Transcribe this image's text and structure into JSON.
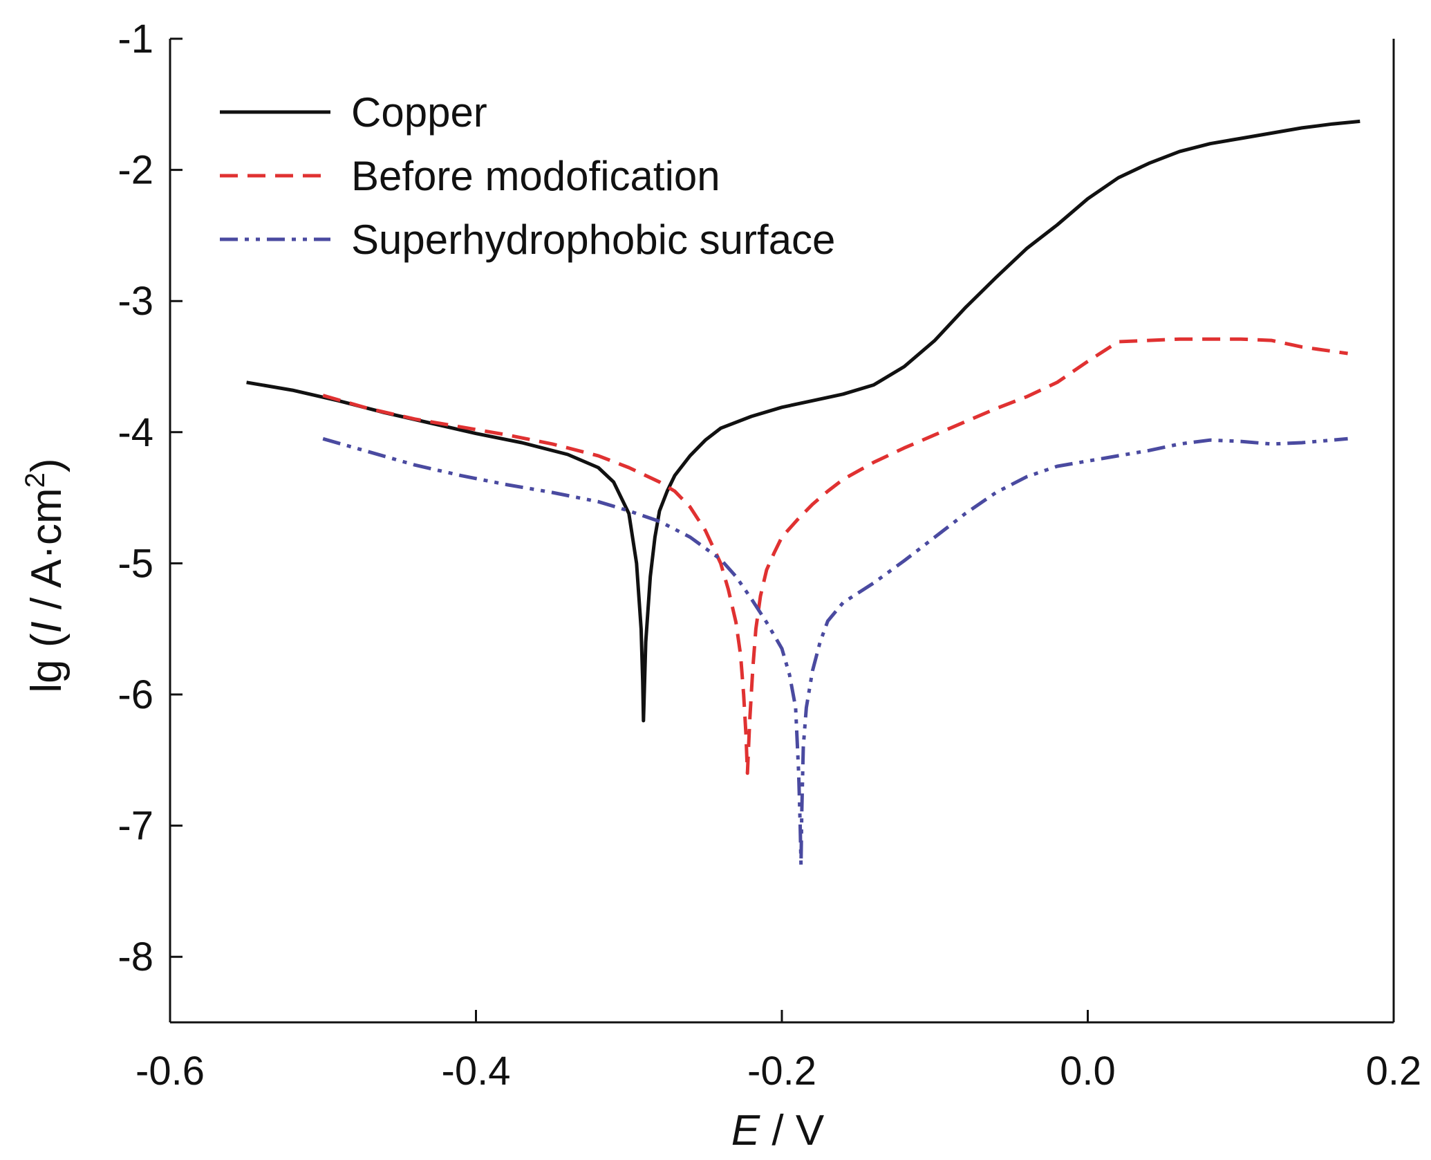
{
  "chart_data": {
    "type": "line",
    "xlabel": {
      "italic": "E",
      "rest": " / V"
    },
    "ylabel": {
      "pre": "lg (",
      "italic": "I",
      "post": " / A·cm",
      "sup": "2",
      "end": ")"
    },
    "xlim": [
      -0.6,
      0.2
    ],
    "ylim": [
      -8.5,
      -1
    ],
    "x_ticks": [
      -0.6,
      -0.4,
      -0.2,
      0.0,
      0.2
    ],
    "x_tick_labels": [
      "-0.6",
      "-0.4",
      "-0.2",
      "0.0",
      "0.2"
    ],
    "y_ticks": [
      -8,
      -7,
      -6,
      -5,
      -4,
      -3,
      -2,
      -1
    ],
    "y_tick_labels": [
      "-8",
      "-7",
      "-6",
      "-5",
      "-4",
      "-3",
      "-2",
      "-1"
    ],
    "grid": false,
    "legend_position": "top-left",
    "series": [
      {
        "name": "Copper",
        "color": "#111111",
        "style": "solid",
        "points": [
          [
            -0.55,
            -3.62
          ],
          [
            -0.52,
            -3.68
          ],
          [
            -0.49,
            -3.76
          ],
          [
            -0.46,
            -3.85
          ],
          [
            -0.43,
            -3.93
          ],
          [
            -0.4,
            -4.01
          ],
          [
            -0.37,
            -4.08
          ],
          [
            -0.34,
            -4.17
          ],
          [
            -0.32,
            -4.27
          ],
          [
            -0.31,
            -4.38
          ],
          [
            -0.3,
            -4.62
          ],
          [
            -0.295,
            -5.0
          ],
          [
            -0.292,
            -5.5
          ],
          [
            -0.291,
            -5.9
          ],
          [
            -0.2905,
            -6.2
          ],
          [
            -0.29,
            -6.0
          ],
          [
            -0.289,
            -5.6
          ],
          [
            -0.286,
            -5.1
          ],
          [
            -0.283,
            -4.8
          ],
          [
            -0.28,
            -4.6
          ],
          [
            -0.275,
            -4.45
          ],
          [
            -0.27,
            -4.33
          ],
          [
            -0.26,
            -4.18
          ],
          [
            -0.25,
            -4.06
          ],
          [
            -0.24,
            -3.97
          ],
          [
            -0.22,
            -3.88
          ],
          [
            -0.2,
            -3.81
          ],
          [
            -0.18,
            -3.76
          ],
          [
            -0.16,
            -3.71
          ],
          [
            -0.14,
            -3.64
          ],
          [
            -0.12,
            -3.5
          ],
          [
            -0.1,
            -3.3
          ],
          [
            -0.08,
            -3.05
          ],
          [
            -0.06,
            -2.82
          ],
          [
            -0.04,
            -2.6
          ],
          [
            -0.02,
            -2.42
          ],
          [
            0.0,
            -2.22
          ],
          [
            0.02,
            -2.06
          ],
          [
            0.04,
            -1.95
          ],
          [
            0.06,
            -1.86
          ],
          [
            0.08,
            -1.8
          ],
          [
            0.1,
            -1.76
          ],
          [
            0.12,
            -1.72
          ],
          [
            0.14,
            -1.68
          ],
          [
            0.16,
            -1.65
          ],
          [
            0.178,
            -1.63
          ]
        ]
      },
      {
        "name": "Before modofication",
        "color": "#e03131",
        "style": "dashed",
        "points": [
          [
            -0.5,
            -3.72
          ],
          [
            -0.47,
            -3.82
          ],
          [
            -0.44,
            -3.9
          ],
          [
            -0.41,
            -3.96
          ],
          [
            -0.38,
            -4.02
          ],
          [
            -0.35,
            -4.09
          ],
          [
            -0.32,
            -4.18
          ],
          [
            -0.3,
            -4.27
          ],
          [
            -0.28,
            -4.38
          ],
          [
            -0.27,
            -4.45
          ],
          [
            -0.26,
            -4.57
          ],
          [
            -0.25,
            -4.75
          ],
          [
            -0.24,
            -5.0
          ],
          [
            -0.235,
            -5.2
          ],
          [
            -0.23,
            -5.45
          ],
          [
            -0.227,
            -5.7
          ],
          [
            -0.225,
            -6.0
          ],
          [
            -0.2235,
            -6.3
          ],
          [
            -0.2225,
            -6.6
          ],
          [
            -0.221,
            -6.2
          ],
          [
            -0.219,
            -5.8
          ],
          [
            -0.217,
            -5.5
          ],
          [
            -0.214,
            -5.25
          ],
          [
            -0.21,
            -5.05
          ],
          [
            -0.205,
            -4.92
          ],
          [
            -0.2,
            -4.8
          ],
          [
            -0.19,
            -4.67
          ],
          [
            -0.18,
            -4.55
          ],
          [
            -0.17,
            -4.45
          ],
          [
            -0.16,
            -4.36
          ],
          [
            -0.14,
            -4.23
          ],
          [
            -0.12,
            -4.12
          ],
          [
            -0.1,
            -4.02
          ],
          [
            -0.08,
            -3.92
          ],
          [
            -0.06,
            -3.82
          ],
          [
            -0.04,
            -3.73
          ],
          [
            -0.02,
            -3.62
          ],
          [
            0.0,
            -3.46
          ],
          [
            0.02,
            -3.31
          ],
          [
            0.04,
            -3.3
          ],
          [
            0.06,
            -3.29
          ],
          [
            0.08,
            -3.29
          ],
          [
            0.1,
            -3.29
          ],
          [
            0.12,
            -3.3
          ],
          [
            0.14,
            -3.35
          ],
          [
            0.17,
            -3.4
          ]
        ]
      },
      {
        "name": "Superhydrophobic surface",
        "color": "#4a4aa0",
        "style": "dashdotdot",
        "points": [
          [
            -0.5,
            -4.05
          ],
          [
            -0.47,
            -4.15
          ],
          [
            -0.44,
            -4.25
          ],
          [
            -0.41,
            -4.33
          ],
          [
            -0.38,
            -4.4
          ],
          [
            -0.35,
            -4.46
          ],
          [
            -0.32,
            -4.53
          ],
          [
            -0.3,
            -4.6
          ],
          [
            -0.28,
            -4.68
          ],
          [
            -0.26,
            -4.8
          ],
          [
            -0.24,
            -4.97
          ],
          [
            -0.23,
            -5.1
          ],
          [
            -0.22,
            -5.27
          ],
          [
            -0.21,
            -5.45
          ],
          [
            -0.2,
            -5.65
          ],
          [
            -0.195,
            -5.85
          ],
          [
            -0.191,
            -6.1
          ],
          [
            -0.189,
            -6.6
          ],
          [
            -0.188,
            -7.0
          ],
          [
            -0.1875,
            -7.3
          ],
          [
            -0.187,
            -6.9
          ],
          [
            -0.186,
            -6.4
          ],
          [
            -0.184,
            -6.1
          ],
          [
            -0.18,
            -5.82
          ],
          [
            -0.175,
            -5.6
          ],
          [
            -0.17,
            -5.44
          ],
          [
            -0.16,
            -5.3
          ],
          [
            -0.14,
            -5.15
          ],
          [
            -0.12,
            -4.98
          ],
          [
            -0.1,
            -4.8
          ],
          [
            -0.08,
            -4.62
          ],
          [
            -0.06,
            -4.46
          ],
          [
            -0.04,
            -4.34
          ],
          [
            -0.02,
            -4.26
          ],
          [
            0.0,
            -4.22
          ],
          [
            0.02,
            -4.18
          ],
          [
            0.04,
            -4.14
          ],
          [
            0.06,
            -4.09
          ],
          [
            0.08,
            -4.06
          ],
          [
            0.1,
            -4.07
          ],
          [
            0.12,
            -4.09
          ],
          [
            0.14,
            -4.08
          ],
          [
            0.17,
            -4.05
          ]
        ]
      }
    ]
  }
}
